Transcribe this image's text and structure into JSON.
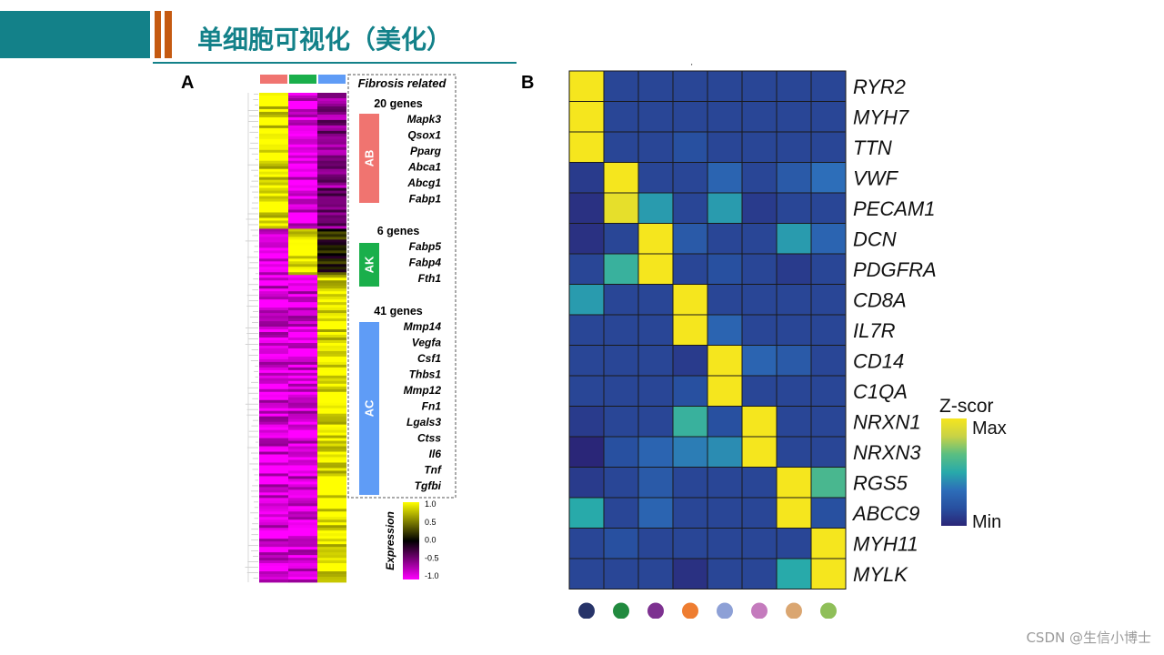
{
  "slide": {
    "title": "单细胞可视化（美化）",
    "theme_color": "#138189",
    "accent_color": "#c55a11",
    "watermark": "CSDN @生信小博士"
  },
  "panels": {
    "a_label": "A",
    "b_label": "B"
  },
  "colors": {
    "ab": "#f07470",
    "ak": "#1aaf4b",
    "ac": "#5f9cf6",
    "yellow": "#ffff00",
    "black": "#000000",
    "magenta": "#ff00ff"
  },
  "chart_data": [
    {
      "type": "heatmap",
      "panel": "A",
      "columns": [
        "AB",
        "AK",
        "AC"
      ],
      "column_colors": [
        "#f07470",
        "#1aaf4b",
        "#5f9cf6"
      ],
      "row_blocks": [
        {
          "cluster": "AB",
          "pattern": [
            "high",
            "low",
            "mid-low"
          ]
        },
        {
          "cluster": "AK",
          "pattern": [
            "low",
            "high",
            "mid"
          ]
        },
        {
          "cluster": "AC",
          "pattern": [
            "low",
            "low",
            "high"
          ]
        }
      ],
      "annotation_title": "Fibrosis related",
      "groups": [
        {
          "label": "AB",
          "count_label": "20 genes",
          "color": "#f07470",
          "genes": [
            "Mapk3",
            "Qsox1",
            "Pparg",
            "Abca1",
            "Abcg1",
            "Fabp1"
          ]
        },
        {
          "label": "AK",
          "count_label": "6 genes",
          "color": "#1aaf4b",
          "genes": [
            "Fabp5",
            "Fabp4",
            "Fth1"
          ]
        },
        {
          "label": "AC",
          "count_label": "41 genes",
          "color": "#5f9cf6",
          "genes": [
            "Mmp14",
            "Vegfa",
            "Csf1",
            "Thbs1",
            "Mmp12",
            "Fn1",
            "Lgals3",
            "Ctss",
            "Il6",
            "Tnf",
            "Tgfbi"
          ]
        }
      ],
      "legend": {
        "title": "Expression",
        "ticks": [
          "1.0",
          "0.5",
          "0.0",
          "-0.5",
          "-1.0"
        ],
        "values": [
          1.0,
          0.5,
          0.0,
          -0.5,
          -1.0
        ]
      }
    },
    {
      "type": "heatmap",
      "panel": "B",
      "rows": [
        "RYR2",
        "MYH7",
        "TTN",
        "VWF",
        "PECAM1",
        "DCN",
        "PDGFRA",
        "CD8A",
        "IL7R",
        "CD14",
        "C1QA",
        "NRXN1",
        "NRXN3",
        "RGS5",
        "ABCC9",
        "MYH11",
        "MYLK"
      ],
      "column_dot_colors": [
        "#273469",
        "#218a3f",
        "#7d3190",
        "#ee7d31",
        "#8da0d6",
        "#c47bbd",
        "#daa671",
        "#8fbf59"
      ],
      "values": [
        [
          1.0,
          0.15,
          0.15,
          0.15,
          0.15,
          0.15,
          0.15,
          0.15
        ],
        [
          1.0,
          0.15,
          0.15,
          0.15,
          0.15,
          0.15,
          0.15,
          0.15
        ],
        [
          1.0,
          0.15,
          0.15,
          0.2,
          0.15,
          0.15,
          0.15,
          0.15
        ],
        [
          0.1,
          1.0,
          0.15,
          0.15,
          0.3,
          0.15,
          0.25,
          0.35
        ],
        [
          0.05,
          0.95,
          0.5,
          0.15,
          0.5,
          0.1,
          0.15,
          0.15
        ],
        [
          0.05,
          0.15,
          1.0,
          0.25,
          0.15,
          0.15,
          0.5,
          0.3
        ],
        [
          0.15,
          0.6,
          1.0,
          0.15,
          0.2,
          0.15,
          0.1,
          0.15
        ],
        [
          0.5,
          0.15,
          0.15,
          1.0,
          0.15,
          0.15,
          0.15,
          0.15
        ],
        [
          0.15,
          0.15,
          0.15,
          1.0,
          0.3,
          0.15,
          0.15,
          0.15
        ],
        [
          0.15,
          0.15,
          0.15,
          0.1,
          1.0,
          0.3,
          0.25,
          0.15
        ],
        [
          0.15,
          0.15,
          0.15,
          0.2,
          1.0,
          0.15,
          0.15,
          0.15
        ],
        [
          0.1,
          0.15,
          0.15,
          0.6,
          0.2,
          1.0,
          0.15,
          0.15
        ],
        [
          0.0,
          0.2,
          0.3,
          0.4,
          0.45,
          1.0,
          0.15,
          0.15
        ],
        [
          0.1,
          0.15,
          0.25,
          0.15,
          0.15,
          0.15,
          1.0,
          0.65
        ],
        [
          0.55,
          0.15,
          0.3,
          0.15,
          0.15,
          0.15,
          1.0,
          0.2
        ],
        [
          0.15,
          0.2,
          0.15,
          0.15,
          0.15,
          0.15,
          0.15,
          1.0
        ],
        [
          0.15,
          0.15,
          0.15,
          0.05,
          0.15,
          0.15,
          0.55,
          1.0
        ]
      ],
      "legend": {
        "title": "Z-scor",
        "max_label": "Max",
        "min_label": "Min"
      }
    }
  ]
}
